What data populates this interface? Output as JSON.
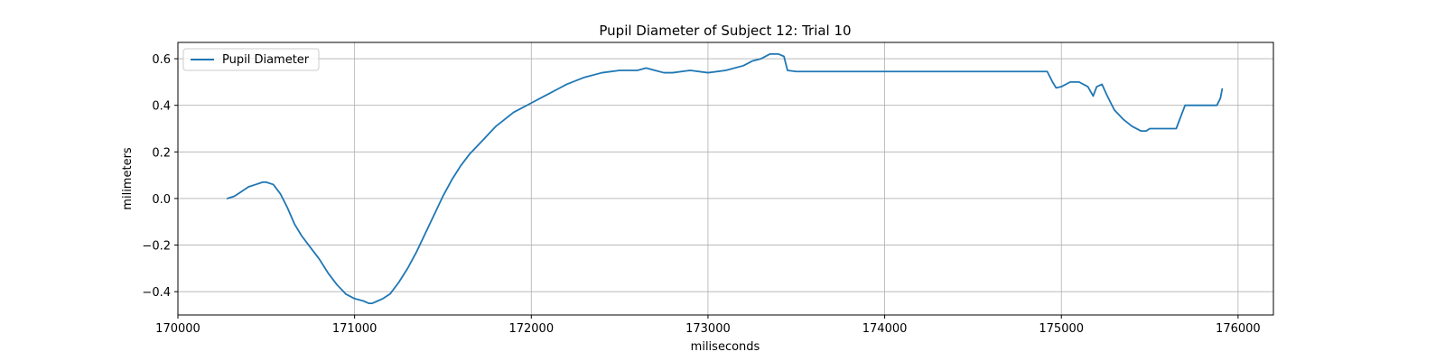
{
  "chart_data": {
    "type": "line",
    "title": "Pupil Diameter of Subject 12: Trial 10",
    "xlabel": "miliseconds",
    "ylabel": "milimeters",
    "xlim": [
      170000,
      176200
    ],
    "ylim": [
      -0.5,
      0.67
    ],
    "xticks": [
      170000,
      171000,
      172000,
      173000,
      174000,
      175000,
      176000
    ],
    "xtick_labels": [
      "170000",
      "171000",
      "172000",
      "173000",
      "174000",
      "175000",
      "176000"
    ],
    "yticks": [
      -0.4,
      -0.2,
      0.0,
      0.2,
      0.4,
      0.6
    ],
    "ytick_labels": [
      "−0.4",
      "−0.2",
      "0.0",
      "0.2",
      "0.4",
      "0.6"
    ],
    "grid": true,
    "legend": {
      "position": "top-left",
      "entries": [
        "Pupil Diameter"
      ]
    },
    "series": [
      {
        "name": "Pupil Diameter",
        "color": "#1f77b4",
        "x": [
          170280,
          170320,
          170360,
          170400,
          170440,
          170480,
          170500,
          170540,
          170580,
          170620,
          170660,
          170700,
          170750,
          170800,
          170850,
          170900,
          170950,
          171000,
          171050,
          171080,
          171100,
          171130,
          171160,
          171200,
          171250,
          171300,
          171350,
          171400,
          171450,
          171500,
          171550,
          171600,
          171650,
          171700,
          171750,
          171800,
          171850,
          171900,
          171950,
          172000,
          172050,
          172100,
          172150,
          172200,
          172300,
          172400,
          172500,
          172600,
          172650,
          172700,
          172750,
          172800,
          172900,
          173000,
          173100,
          173200,
          173250,
          173300,
          173350,
          173400,
          173430,
          173450,
          173500,
          174000,
          174500,
          174920,
          174950,
          174970,
          175000,
          175050,
          175100,
          175150,
          175180,
          175200,
          175230,
          175260,
          175300,
          175350,
          175400,
          175450,
          175480,
          175500,
          175550,
          175600,
          175650,
          175680,
          175700,
          175750,
          175800,
          175850,
          175880,
          175900,
          175910
        ],
        "values": [
          0.0,
          0.01,
          0.03,
          0.05,
          0.06,
          0.07,
          0.07,
          0.06,
          0.02,
          -0.04,
          -0.11,
          -0.16,
          -0.21,
          -0.26,
          -0.32,
          -0.37,
          -0.41,
          -0.43,
          -0.44,
          -0.45,
          -0.45,
          -0.44,
          -0.43,
          -0.41,
          -0.36,
          -0.3,
          -0.23,
          -0.15,
          -0.07,
          0.01,
          0.08,
          0.14,
          0.19,
          0.23,
          0.27,
          0.31,
          0.34,
          0.37,
          0.39,
          0.41,
          0.43,
          0.45,
          0.47,
          0.49,
          0.52,
          0.54,
          0.55,
          0.55,
          0.56,
          0.55,
          0.54,
          0.54,
          0.55,
          0.54,
          0.55,
          0.57,
          0.59,
          0.6,
          0.62,
          0.62,
          0.61,
          0.55,
          0.545,
          0.545,
          0.545,
          0.545,
          0.5,
          0.475,
          0.48,
          0.5,
          0.5,
          0.48,
          0.44,
          0.48,
          0.49,
          0.44,
          0.38,
          0.34,
          0.31,
          0.29,
          0.29,
          0.3,
          0.3,
          0.3,
          0.3,
          0.36,
          0.4,
          0.4,
          0.4,
          0.4,
          0.4,
          0.43,
          0.47
        ]
      }
    ]
  }
}
